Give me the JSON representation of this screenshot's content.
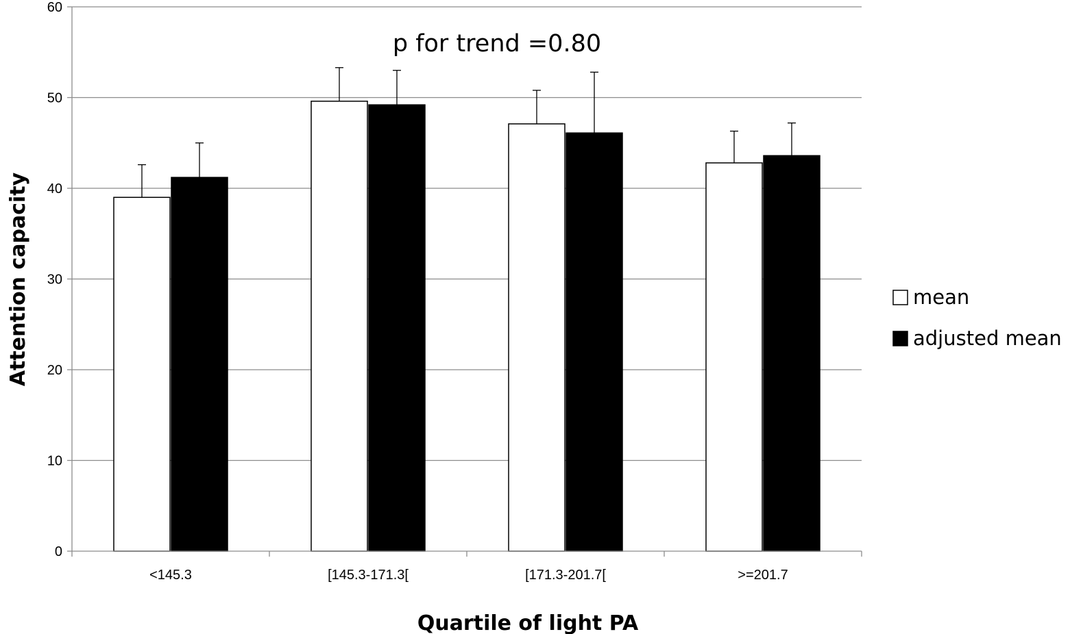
{
  "chart_data": {
    "type": "bar",
    "title": "",
    "xlabel": "Quartile of light PA",
    "ylabel": "Attention capacity",
    "ylim": [
      0,
      60
    ],
    "yticks": [
      0,
      10,
      20,
      30,
      40,
      50,
      60
    ],
    "grid": true,
    "categories": [
      "<145.3",
      "[145.3-171.3[",
      "[171.3-201.7[",
      ">=201.7"
    ],
    "series": [
      {
        "name": "mean",
        "color": "#ffffff",
        "values": [
          39.0,
          49.6,
          47.1,
          42.8
        ],
        "error": [
          3.6,
          3.7,
          3.7,
          3.5
        ]
      },
      {
        "name": "adjusted mean",
        "color": "#000000",
        "values": [
          41.2,
          49.2,
          46.1,
          43.6
        ],
        "error": [
          3.8,
          3.8,
          6.7,
          3.6
        ]
      }
    ],
    "annotations": [
      "p for trend =0.80"
    ],
    "legend": {
      "position": "right"
    }
  }
}
